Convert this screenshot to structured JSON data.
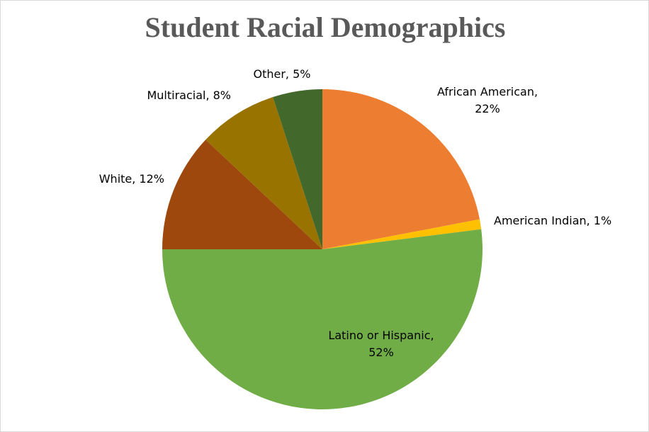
{
  "chart_data": {
    "type": "pie",
    "title": "Student Racial Demographics",
    "slices": [
      {
        "label": "African American",
        "value": 22,
        "display": "22%",
        "color": "#ED7D31"
      },
      {
        "label": "American Indian",
        "value": 1,
        "display": "1%",
        "color": "#FFC000"
      },
      {
        "label": "Latino or Hispanic",
        "value": 52,
        "display": "52%",
        "color": "#70AD47"
      },
      {
        "label": "White",
        "value": 12,
        "display": "12%",
        "color": "#9E480E"
      },
      {
        "label": "Multiracial",
        "value": 8,
        "display": "8%",
        "color": "#997300"
      },
      {
        "label": "Other",
        "value": 5,
        "display": "5%",
        "color": "#43682B"
      }
    ],
    "start_angle": "12 o'clock",
    "direction": "clockwise",
    "data_labels": "category name and percentage",
    "legend": "none"
  }
}
